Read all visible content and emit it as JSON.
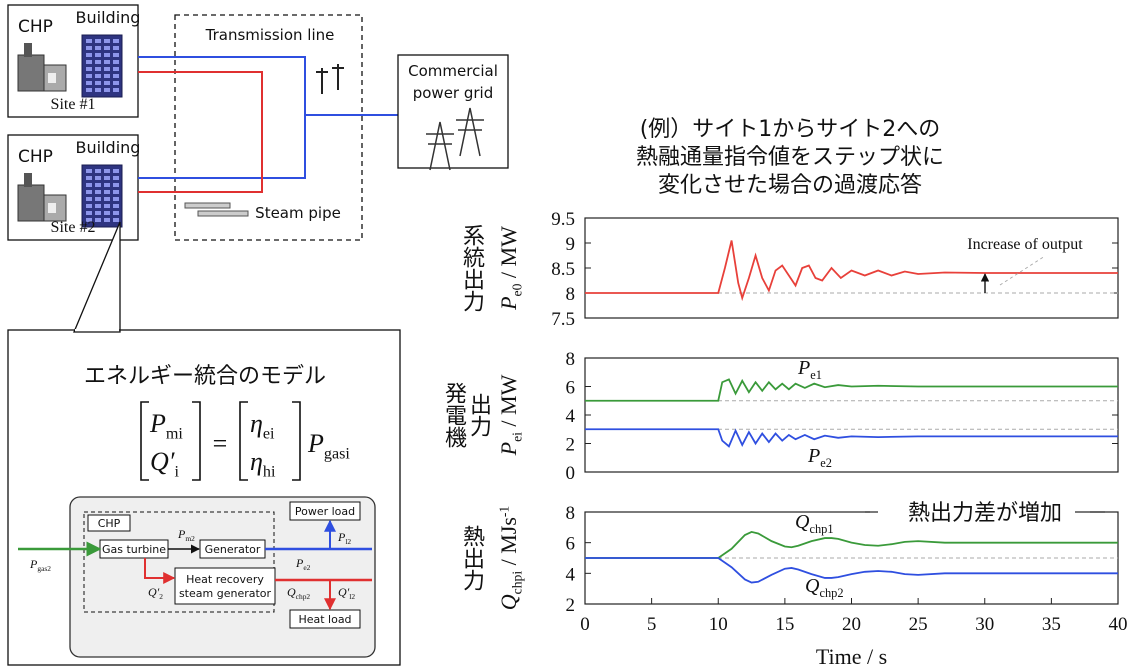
{
  "diagram": {
    "sites": [
      {
        "chp": "CHP",
        "building": "Building",
        "name": "Site #1"
      },
      {
        "chp": "CHP",
        "building": "Building",
        "name": "Site #2"
      }
    ],
    "transmission_line": "Transmission line",
    "steam_pipe": "Steam pipe",
    "grid": [
      "Commercial",
      "power grid"
    ],
    "model_title": "エネルギー統合のモデル",
    "equation": {
      "lhs": [
        {
          "base": "P",
          "sub": "mi"
        },
        {
          "base": "Q′",
          "sub": "i"
        }
      ],
      "equals": "=",
      "rhs": [
        {
          "base": "η",
          "sub": "ei"
        },
        {
          "base": "η",
          "sub": "hi"
        }
      ],
      "factor": {
        "base": "P",
        "sub": "gasi"
      }
    },
    "block": {
      "chp": "CHP",
      "gas_turbine": "Gas turbine",
      "generator": "Generator",
      "hrsg": [
        "Heat recovery",
        "steam generator"
      ],
      "power_load": "Power load",
      "heat_load": "Heat load",
      "labels": {
        "p_gas": {
          "base": "P",
          "sub": "gas2"
        },
        "p_m": {
          "base": "P",
          "sub": "m2"
        },
        "p_e": {
          "base": "P",
          "sub": "e2"
        },
        "p_l": {
          "base": "P",
          "sub": "l2"
        },
        "q": {
          "base": "Q′",
          "sub": "2"
        },
        "q_chp": {
          "base": "Q",
          "sub": "chp2"
        },
        "q_l": {
          "base": "Q′",
          "sub": "l2"
        }
      }
    }
  },
  "caption": [
    "(例）サイト1からサイト2への",
    "熱融通量指令値をステップ状に",
    "変化させた場合の過渡応答"
  ],
  "chart_data": [
    {
      "type": "line",
      "ylabel": {
        "text": [
          "系統出力"
        ],
        "symbol": {
          "base": "P",
          "sub": "e0",
          "unit": " / MW"
        }
      },
      "xlim": [
        0,
        40
      ],
      "ylim": [
        7.5,
        9.5
      ],
      "yticks": [
        7.5,
        8,
        8.5,
        9,
        9.5
      ],
      "x": [
        0,
        10,
        10.5,
        11,
        11.5,
        11.8,
        12.3,
        12.8,
        13.3,
        13.8,
        14.3,
        14.8,
        15.3,
        15.8,
        16.3,
        16.8,
        17.3,
        17.8,
        18.5,
        19.2,
        20,
        21,
        22,
        23,
        24,
        25,
        27,
        30,
        35,
        40
      ],
      "series": [
        {
          "color": "#e8403a",
          "values": [
            8,
            8,
            8.5,
            9.05,
            8.2,
            7.9,
            8.3,
            8.75,
            8.3,
            8.05,
            8.45,
            8.55,
            8.35,
            8.15,
            8.5,
            8.55,
            8.3,
            8.25,
            8.5,
            8.3,
            8.45,
            8.35,
            8.45,
            8.35,
            8.43,
            8.38,
            8.41,
            8.4,
            8.4,
            8.4
          ]
        }
      ],
      "reference_lines": [
        8
      ],
      "annotations": [
        "Increase of output"
      ]
    },
    {
      "type": "line",
      "ylabel": {
        "text": [
          "発電機",
          "出力"
        ],
        "symbol": {
          "base": "P",
          "sub": "ei",
          "unit": " / MW"
        }
      },
      "xlim": [
        0,
        40
      ],
      "ylim": [
        0,
        8
      ],
      "yticks": [
        0,
        2,
        4,
        6,
        8
      ],
      "x": [
        0,
        10,
        10.3,
        10.8,
        11.3,
        11.8,
        12.3,
        12.8,
        13.3,
        13.8,
        14.3,
        14.8,
        15.3,
        15.8,
        16.5,
        17.2,
        18,
        19,
        20,
        22,
        25,
        30,
        40
      ],
      "series": [
        {
          "name": {
            "base": "P",
            "sub": "e1"
          },
          "color": "#3a9a3a",
          "values": [
            5,
            5,
            6.3,
            6.5,
            5.5,
            6.4,
            5.6,
            6.3,
            5.7,
            6.3,
            5.8,
            6.2,
            5.8,
            6.2,
            5.9,
            6.2,
            5.95,
            6.1,
            6,
            6.05,
            6,
            6,
            6
          ]
        },
        {
          "name": {
            "base": "P",
            "sub": "e2"
          },
          "color": "#2f4fe0",
          "values": [
            3,
            3,
            2.2,
            1.8,
            2.9,
            1.9,
            2.8,
            2.0,
            2.7,
            2.1,
            2.7,
            2.2,
            2.6,
            2.3,
            2.6,
            2.3,
            2.55,
            2.4,
            2.5,
            2.45,
            2.5,
            2.5,
            2.5
          ]
        }
      ],
      "reference_lines": [
        5,
        3
      ]
    },
    {
      "type": "line",
      "ylabel": {
        "text": [
          "熱出力"
        ],
        "symbol": {
          "base": "Q",
          "sub": "chpi",
          "unit": " / MJs",
          "sup": "-1"
        }
      },
      "xlabel": "Time / s",
      "xlim": [
        0,
        40
      ],
      "xticks": [
        0,
        5,
        10,
        15,
        20,
        25,
        30,
        35,
        40
      ],
      "ylim": [
        2,
        8
      ],
      "yticks": [
        2,
        4,
        6,
        8
      ],
      "x": [
        0,
        10,
        11,
        12,
        12.5,
        13,
        14,
        15,
        15.5,
        16,
        17,
        18,
        18.5,
        19,
        20,
        21,
        22,
        23,
        24,
        25,
        27,
        30,
        40
      ],
      "series": [
        {
          "name": {
            "base": "Q",
            "sub": "chp1"
          },
          "color": "#3a9a3a",
          "values": [
            5,
            5,
            5.6,
            6.5,
            6.7,
            6.6,
            6.1,
            5.75,
            5.7,
            5.8,
            6.1,
            6.3,
            6.3,
            6.25,
            6,
            5.85,
            5.8,
            5.9,
            6.05,
            6.1,
            6,
            6,
            6
          ]
        },
        {
          "name": {
            "base": "Q",
            "sub": "chp2"
          },
          "color": "#2f4fe0",
          "values": [
            5,
            5,
            4.4,
            3.6,
            3.4,
            3.45,
            3.9,
            4.3,
            4.35,
            4.25,
            3.95,
            3.7,
            3.7,
            3.75,
            3.95,
            4.1,
            4.15,
            4.1,
            3.95,
            3.9,
            4,
            4,
            4
          ]
        }
      ],
      "reference_lines": [
        5
      ],
      "annotations": [
        "熱出力差が増加"
      ]
    }
  ]
}
